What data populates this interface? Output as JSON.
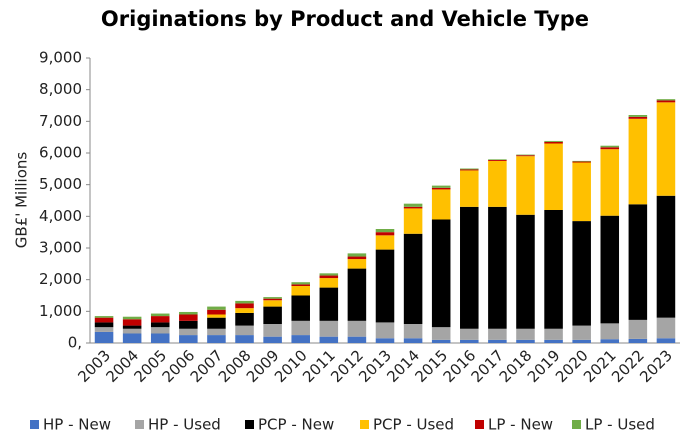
{
  "chart_data": {
    "type": "stacked-bar",
    "title": "Originations by Product and Vehicle Type",
    "ylabel": "GB£' Millions",
    "categories": [
      "2003",
      "2004",
      "2005",
      "2006",
      "2007",
      "2008",
      "2009",
      "2010",
      "2011",
      "2012",
      "2013",
      "2014",
      "2015",
      "2016",
      "2017",
      "2018",
      "2019",
      "2020",
      "2021",
      "2022",
      "2023"
    ],
    "series": [
      {
        "name": "HP - New",
        "color": "#4472c4",
        "values": [
          350,
          300,
          300,
          250,
          250,
          250,
          200,
          250,
          200,
          200,
          150,
          150,
          100,
          100,
          100,
          100,
          100,
          100,
          120,
          130,
          150
        ]
      },
      {
        "name": "HP - Used",
        "color": "#a5a5a5",
        "values": [
          150,
          150,
          200,
          200,
          200,
          300,
          400,
          450,
          500,
          500,
          500,
          450,
          400,
          350,
          350,
          350,
          350,
          450,
          500,
          600,
          650
        ]
      },
      {
        "name": "PCP - New",
        "color": "#000000",
        "values": [
          150,
          100,
          150,
          250,
          350,
          400,
          550,
          800,
          1050,
          1650,
          2300,
          2850,
          3400,
          3850,
          3850,
          3600,
          3750,
          3300,
          3400,
          3650,
          3850
        ]
      },
      {
        "name": "PCP - Used",
        "color": "#ffc000",
        "values": [
          0,
          0,
          0,
          0,
          100,
          150,
          200,
          300,
          300,
          300,
          450,
          800,
          950,
          1150,
          1450,
          1850,
          2100,
          1850,
          2100,
          2700,
          2950
        ]
      },
      {
        "name": "LP - New",
        "color": "#c00000",
        "values": [
          150,
          200,
          200,
          200,
          150,
          150,
          50,
          50,
          80,
          80,
          100,
          50,
          50,
          30,
          30,
          30,
          50,
          30,
          60,
          60,
          60
        ]
      },
      {
        "name": "LP - Used",
        "color": "#70ad47",
        "values": [
          50,
          80,
          80,
          80,
          100,
          80,
          50,
          70,
          70,
          100,
          100,
          100,
          70,
          30,
          20,
          20,
          30,
          20,
          50,
          60,
          40
        ]
      }
    ],
    "ylim": [
      0,
      9000
    ],
    "yticks": [
      {
        "value": 0,
        "label": "0,"
      },
      {
        "value": 1000,
        "label": "1,000"
      },
      {
        "value": 2000,
        "label": "2,000"
      },
      {
        "value": 3000,
        "label": "3,000"
      },
      {
        "value": 4000,
        "label": "4,000"
      },
      {
        "value": 5000,
        "label": "5,000"
      },
      {
        "value": 6000,
        "label": "6,000"
      },
      {
        "value": 7000,
        "label": "7,000"
      },
      {
        "value": 8000,
        "label": "8,000"
      },
      {
        "value": 9000,
        "label": "9,000"
      }
    ],
    "legend": "bottom"
  }
}
